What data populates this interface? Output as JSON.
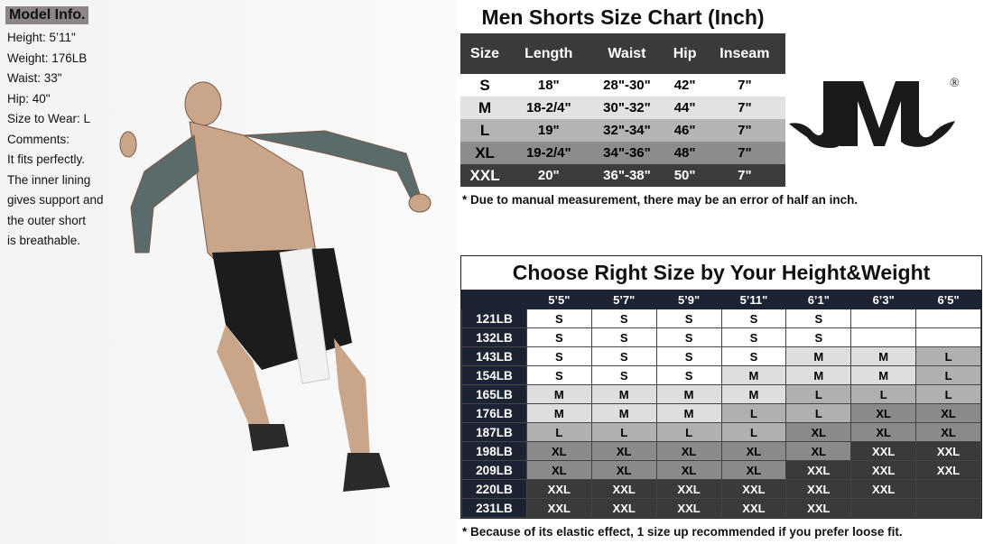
{
  "model_info": {
    "title": "Model Info.",
    "lines": [
      "Height: 5’11\"",
      "Weight: 176LB",
      "Waist: 33\"",
      "Hip: 40\"",
      "Size to Wear: L",
      "Comments:",
      "It fits perfectly.",
      "The inner lining",
      "gives support and",
      "the outer short",
      "is breathable."
    ]
  },
  "size_chart": {
    "title": "Men Shorts Size Chart (Inch)",
    "headers": [
      "Size",
      "Length",
      "Waist",
      "Hip",
      "Inseam"
    ],
    "rows": [
      [
        "S",
        "18\"",
        "28\"-30\"",
        "42\"",
        "7\""
      ],
      [
        "M",
        "18-2/4\"",
        "30\"-32\"",
        "44\"",
        "7\""
      ],
      [
        "L",
        "19\"",
        "32\"-34\"",
        "46\"",
        "7\""
      ],
      [
        "XL",
        "19-2/4\"",
        "34\"-36\"",
        "48\"",
        "7\""
      ],
      [
        "XXL",
        "20\"",
        "36\"-38\"",
        "50\"",
        "7\""
      ]
    ],
    "row_colors": [
      "#ffffff",
      "#e2e2e2",
      "#b4b4b4",
      "#8c8c8c",
      "#3c3c3c"
    ],
    "note": "* Due to manual measurement, there may be an error of half an inch."
  },
  "logo": {
    "text": "JVVL",
    "mark": "®"
  },
  "height_weight": {
    "title": "Choose Right Size by Your Height&Weight",
    "heights": [
      "5’5\"",
      "5’7\"",
      "5’9\"",
      "5’11\"",
      "6’1\"",
      "6’3\"",
      "6’5\""
    ],
    "rows": [
      {
        "weight": "121LB",
        "sizes": [
          "S",
          "S",
          "S",
          "S",
          "S",
          "",
          ""
        ]
      },
      {
        "weight": "132LB",
        "sizes": [
          "S",
          "S",
          "S",
          "S",
          "S",
          "",
          ""
        ]
      },
      {
        "weight": "143LB",
        "sizes": [
          "S",
          "S",
          "S",
          "S",
          "M",
          "M",
          "L"
        ]
      },
      {
        "weight": "154LB",
        "sizes": [
          "S",
          "S",
          "S",
          "M",
          "M",
          "M",
          "L"
        ]
      },
      {
        "weight": "165LB",
        "sizes": [
          "M",
          "M",
          "M",
          "M",
          "L",
          "L",
          "L"
        ]
      },
      {
        "weight": "176LB",
        "sizes": [
          "M",
          "M",
          "M",
          "L",
          "L",
          "XL",
          "XL"
        ]
      },
      {
        "weight": "187LB",
        "sizes": [
          "L",
          "L",
          "L",
          "L",
          "XL",
          "XL",
          "XL"
        ]
      },
      {
        "weight": "198LB",
        "sizes": [
          "XL",
          "XL",
          "XL",
          "XL",
          "XL",
          "XXL",
          "XXL"
        ]
      },
      {
        "weight": "209LB",
        "sizes": [
          "XL",
          "XL",
          "XL",
          "XL",
          "XXL",
          "XXL",
          "XXL"
        ]
      },
      {
        "weight": "220LB",
        "sizes": [
          "XXL",
          "XXL",
          "XXL",
          "XXL",
          "XXL",
          "XXL",
          ""
        ]
      },
      {
        "weight": "231LB",
        "sizes": [
          "XXL",
          "XXL",
          "XXL",
          "XXL",
          "XXL",
          "",
          ""
        ]
      }
    ],
    "size_colors": {
      "S": "#ffffff",
      "M": "#dedede",
      "L": "#b0b0b0",
      "XL": "#8a8a8a",
      "XXL": "#3a3a3a"
    },
    "header_color": "#1c2433",
    "note": "* Because of its elastic effect, 1 size up recommended if you prefer loose fit."
  }
}
